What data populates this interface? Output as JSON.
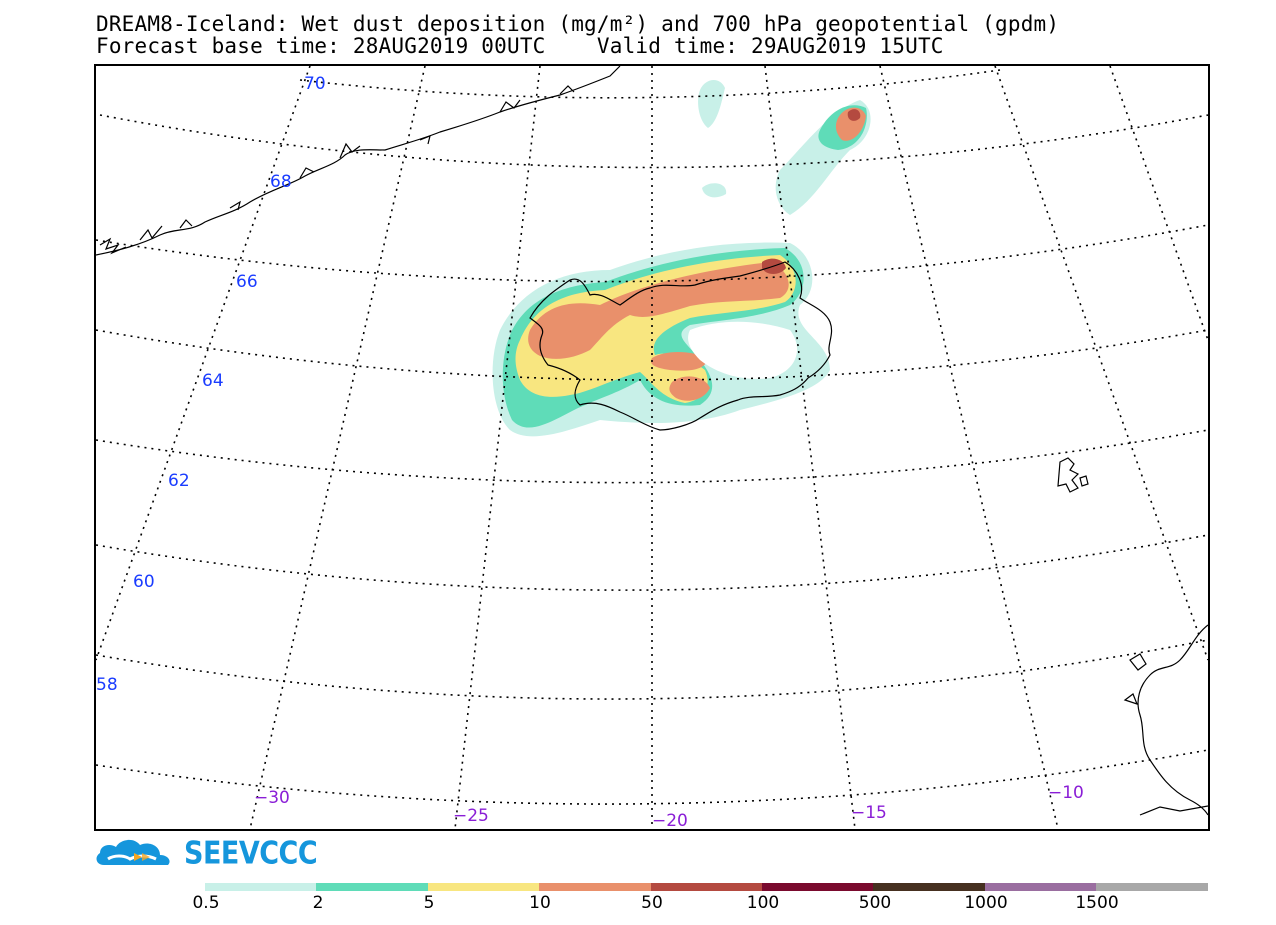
{
  "titles": {
    "line1": "DREAM8-Iceland: Wet dust deposition (mg/m²) and 700 hPa geopotential (gpdm)",
    "line2": "Forecast base time: 28AUG2019 00UTC    Valid time: 29AUG2019 15UTC"
  },
  "latitudes": [
    "70",
    "68",
    "66",
    "64",
    "62",
    "60",
    "58"
  ],
  "longitudes": [
    "−30",
    "−25",
    "−20",
    "−15",
    "−10"
  ],
  "logo": {
    "text": "SEEVCCC",
    "icon": "cloud-logo-icon"
  },
  "legend": {
    "labels": [
      "0.5",
      "2",
      "5",
      "10",
      "50",
      "100",
      "500",
      "1000",
      "1500"
    ],
    "colors": [
      "#c8f0e8",
      "#5fdcb8",
      "#f8e680",
      "#e9906b",
      "#b44a40",
      "#7a0a2e",
      "#463020",
      "#9a6ea0",
      "#a8a8a8"
    ]
  },
  "map": {
    "colors": {
      "graticule": "#000000",
      "coast": "#000000",
      "light": "#c8f0e8",
      "teal": "#5fdcb8",
      "yellow": "#f8e680",
      "orange": "#e9906b",
      "red": "#b44a40"
    }
  }
}
